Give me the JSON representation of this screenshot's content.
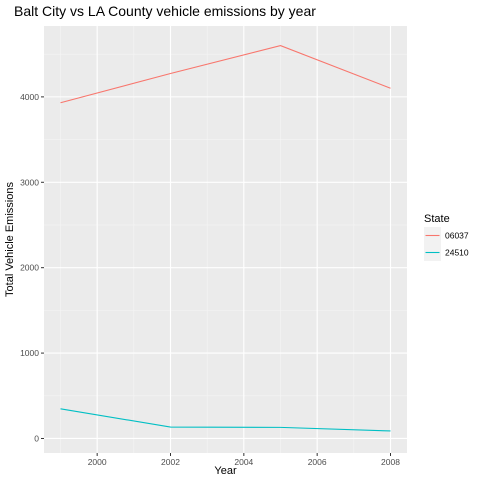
{
  "chart_data": {
    "type": "line",
    "title": "Balt City vs LA County vehicle emissions by year",
    "xlabel": "Year",
    "ylabel": "Total Vehicle Emissions",
    "x": [
      1999,
      2002,
      2005,
      2008
    ],
    "xlim": [
      1998.55,
      2008.45
    ],
    "ylim": [
      -170,
      4830
    ],
    "xticks": [
      2000,
      2002,
      2004,
      2006,
      2008
    ],
    "yticks": [
      0,
      1000,
      2000,
      3000,
      4000
    ],
    "grid": true,
    "legend": {
      "title": "State",
      "placement": "right"
    },
    "series": [
      {
        "name": "06037",
        "color": "#F8766D",
        "values": [
          3931,
          4274,
          4601,
          4101
        ]
      },
      {
        "name": "24510",
        "color": "#00BFC4",
        "values": [
          347,
          134,
          130,
          88
        ]
      }
    ]
  }
}
